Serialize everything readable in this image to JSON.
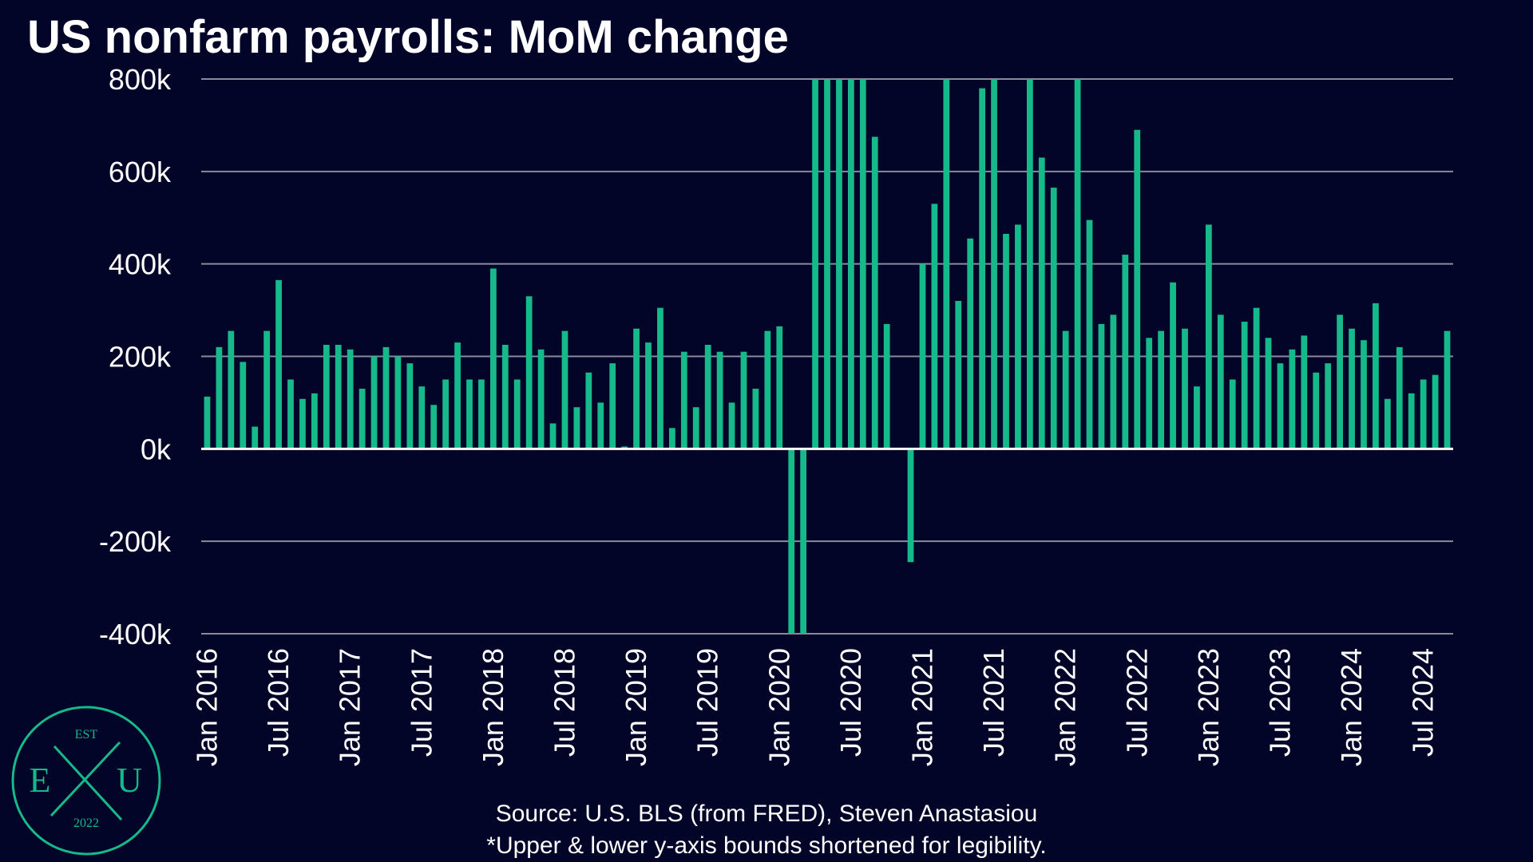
{
  "chart_data": {
    "type": "bar",
    "title": "US nonfarm payrolls: MoM change",
    "ylim": [
      -400000,
      800000
    ],
    "yticks": [
      -400000,
      -200000,
      0,
      200000,
      400000,
      600000,
      800000
    ],
    "ytick_labels": [
      "-400k",
      "-200k",
      "0k",
      "200k",
      "400k",
      "600k",
      "800k"
    ],
    "xtick_labels": [
      "Jan 2016",
      "Jul 2016",
      "Jan 2017",
      "Jul 2017",
      "Jan 2018",
      "Jul 2018",
      "Jan 2019",
      "Jul 2019",
      "Jan 2020",
      "Jul 2020",
      "Jan 2021",
      "Jul 2021",
      "Jan 2022",
      "Jul 2022",
      "Jan 2023",
      "Jul 2023",
      "Jan 2024",
      "Jul 2024"
    ],
    "grid": true,
    "bar_color": "#16b98a",
    "start_month": "Jan 2016",
    "values": [
      113000,
      220000,
      255000,
      188000,
      48000,
      255000,
      365000,
      150000,
      108000,
      120000,
      225000,
      225000,
      215000,
      130000,
      200000,
      220000,
      200000,
      185000,
      135000,
      95000,
      150000,
      230000,
      150000,
      150000,
      390000,
      225000,
      150000,
      330000,
      215000,
      55000,
      255000,
      90000,
      165000,
      100000,
      185000,
      5000,
      260000,
      230000,
      305000,
      45000,
      210000,
      90000,
      225000,
      210000,
      100000,
      210000,
      130000,
      255000,
      265000,
      -425000,
      -420000,
      800000,
      800000,
      800000,
      800000,
      800000,
      675000,
      270000,
      0,
      -245000,
      400000,
      530000,
      800000,
      320000,
      455000,
      780000,
      800000,
      465000,
      485000,
      800000,
      630000,
      565000,
      255000,
      800000,
      495000,
      270000,
      290000,
      420000,
      690000,
      240000,
      255000,
      360000,
      260000,
      135000,
      485000,
      290000,
      150000,
      275000,
      305000,
      240000,
      185000,
      215000,
      245000,
      165000,
      185000,
      290000,
      260000,
      235000,
      315000,
      108000,
      220000,
      120000,
      150000,
      160000,
      255000
    ]
  },
  "source": "Source: U.S. BLS (from FRED), Steven Anastasiou",
  "footnote": "*Upper & lower y-axis bounds shortened for legibility.",
  "logo": {
    "top": "EST",
    "left": "E",
    "right": "U",
    "bottom": "2022"
  },
  "colors": {
    "background": "#020428",
    "bars": "#16b98a",
    "grid": "#8a8a9c",
    "text": "#ffffff"
  }
}
